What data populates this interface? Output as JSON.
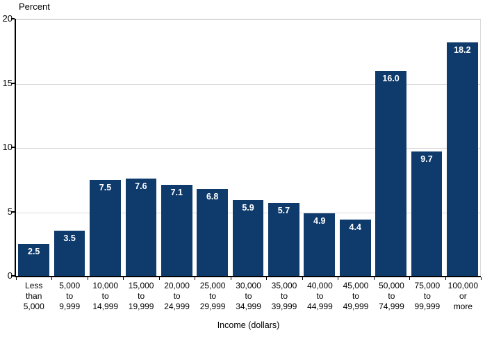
{
  "chart_data": {
    "type": "bar",
    "title": "",
    "ylabel": "Percent",
    "xlabel": "Income (dollars)",
    "ylim": [
      0,
      20
    ],
    "yticks": [
      0,
      5,
      10,
      15,
      20
    ],
    "grid": "horizontal gridlines at 5, 10, 15, 20",
    "legend": "none",
    "bar_color": "#0e3a6c",
    "value_label_color": "#ffffff",
    "gridline_color": "#d9d9d9",
    "categories": [
      [
        "Less",
        "than",
        "5,000"
      ],
      [
        "5,000",
        "to",
        "9,999"
      ],
      [
        "10,000",
        "to",
        "14,999"
      ],
      [
        "15,000",
        "to",
        "19,999"
      ],
      [
        "20,000",
        "to",
        "24,999"
      ],
      [
        "25,000",
        "to",
        "29,999"
      ],
      [
        "30,000",
        "to",
        "34,999"
      ],
      [
        "35,000",
        "to",
        "39,999"
      ],
      [
        "40,000",
        "to",
        "44,999"
      ],
      [
        "45,000",
        "to",
        "49,999"
      ],
      [
        "50,000",
        "to",
        "74,999"
      ],
      [
        "75,000",
        "to",
        "99,999"
      ],
      [
        "100,000",
        "or",
        "more"
      ]
    ],
    "values": [
      2.5,
      3.5,
      7.5,
      7.6,
      7.1,
      6.8,
      5.9,
      5.7,
      4.9,
      4.4,
      16.0,
      9.7,
      18.2
    ],
    "value_labels": [
      "2.5",
      "3.5",
      "7.5",
      "7.6",
      "7.1",
      "6.8",
      "5.9",
      "5.7",
      "4.9",
      "4.4",
      "16.0",
      "9.7",
      "18.2"
    ]
  }
}
